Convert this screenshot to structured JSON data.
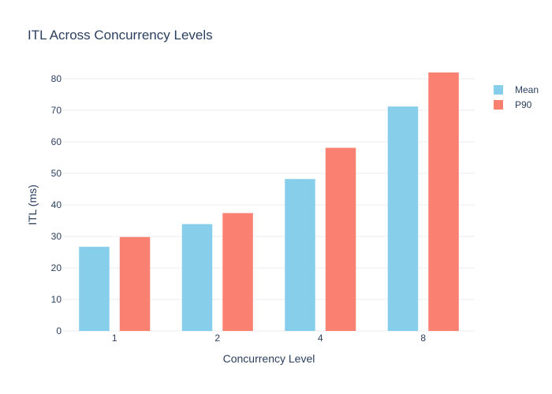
{
  "chart_data": {
    "type": "bar",
    "title": "ITL Across Concurrency Levels",
    "xlabel": "Concurrency Level",
    "ylabel": "ITL (ms)",
    "categories": [
      "1",
      "2",
      "4",
      "8"
    ],
    "series": [
      {
        "name": "Mean",
        "color": "#87ceeb",
        "values": [
          26.7,
          33.9,
          48.2,
          71.2
        ]
      },
      {
        "name": "P90",
        "color": "#fa8072",
        "values": [
          29.8,
          37.4,
          58.1,
          82.0
        ]
      }
    ],
    "ylim": [
      0,
      85
    ],
    "yticks": [
      0,
      10,
      20,
      30,
      40,
      50,
      60,
      70,
      80
    ],
    "grid": true,
    "legend": "top-right"
  }
}
